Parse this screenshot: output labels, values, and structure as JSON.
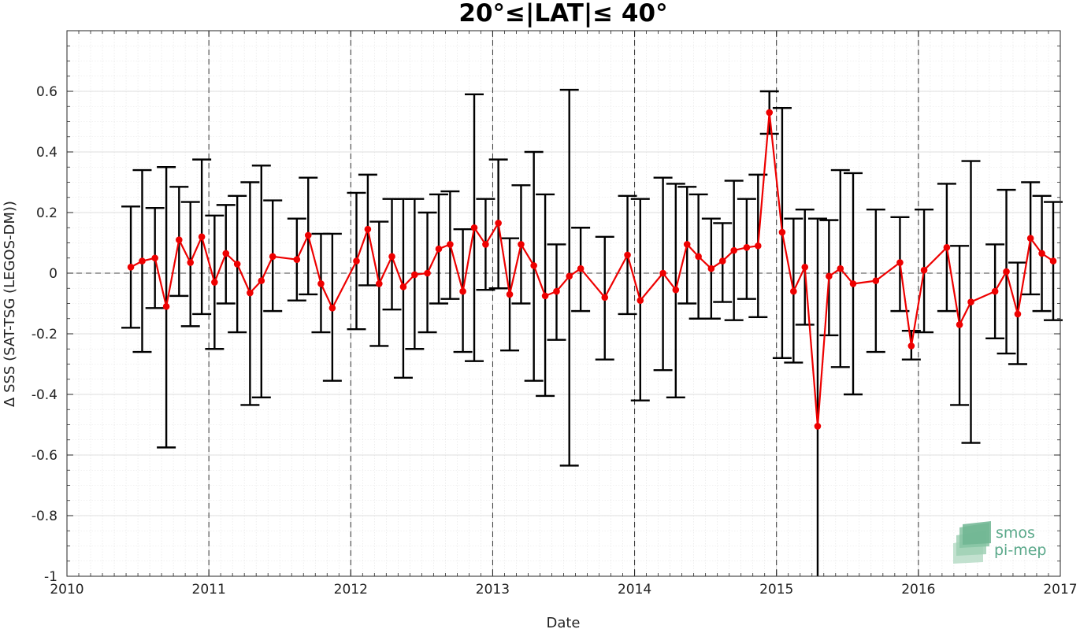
{
  "chart_data": {
    "type": "line",
    "title": "20°≤|LAT|≤ 40°",
    "xlabel": "Date",
    "ylabel": "Δ SSS (SAT-TSG (LEGOS-DM))",
    "xlim": [
      2010,
      2017
    ],
    "ylim": [
      -1,
      0.8
    ],
    "x_ticks": [
      "2010",
      "2011",
      "2012",
      "2013",
      "2014",
      "2015",
      "2016",
      "2017"
    ],
    "y_ticks": [
      "-1",
      "-0.8",
      "-0.6",
      "-0.4",
      "-0.2",
      "0",
      "0.2",
      "0.4",
      "0.6"
    ],
    "grid": true,
    "zero_line": true,
    "year_lines": [
      2011,
      2012,
      2013,
      2014,
      2015,
      2016
    ],
    "series": [
      {
        "color": "#ee0000",
        "errorbar_color": "#000000",
        "x": [
          2010.45,
          2010.53,
          2010.62,
          2010.7,
          2010.79,
          2010.87,
          2010.95,
          2011.04,
          2011.12,
          2011.2,
          2011.29,
          2011.37,
          2011.45,
          2011.62,
          2011.7,
          2011.79,
          2011.87,
          2012.04,
          2012.12,
          2012.2,
          2012.29,
          2012.37,
          2012.45,
          2012.54,
          2012.62,
          2012.7,
          2012.79,
          2012.87,
          2012.95,
          2013.04,
          2013.12,
          2013.2,
          2013.29,
          2013.37,
          2013.45,
          2013.54,
          2013.62,
          2013.79,
          2013.95,
          2014.04,
          2014.2,
          2014.29,
          2014.37,
          2014.45,
          2014.54,
          2014.62,
          2014.7,
          2014.79,
          2014.87,
          2014.95,
          2015.04,
          2015.12,
          2015.2,
          2015.29,
          2015.37,
          2015.45,
          2015.54,
          2015.7,
          2015.87,
          2015.95,
          2016.04,
          2016.2,
          2016.29,
          2016.37,
          2016.54,
          2016.62,
          2016.7,
          2016.79,
          2016.87,
          2016.95
        ],
        "y": [
          0.02,
          0.04,
          0.05,
          -0.11,
          0.11,
          0.035,
          0.12,
          -0.03,
          0.065,
          0.03,
          -0.065,
          -0.025,
          0.055,
          0.045,
          0.125,
          -0.035,
          -0.115,
          0.04,
          0.145,
          -0.035,
          0.055,
          -0.045,
          -0.005,
          0.0,
          0.08,
          0.095,
          -0.06,
          0.15,
          0.095,
          0.165,
          -0.07,
          0.095,
          0.025,
          -0.075,
          -0.06,
          -0.01,
          0.015,
          -0.08,
          0.06,
          -0.09,
          0.0,
          -0.055,
          0.095,
          0.055,
          0.015,
          0.04,
          0.075,
          0.085,
          0.09,
          0.53,
          0.135,
          -0.06,
          0.02,
          -0.505,
          -0.01,
          0.015,
          -0.035,
          -0.025,
          0.035,
          -0.24,
          0.01,
          0.085,
          -0.17,
          -0.095,
          -0.06,
          0.005,
          -0.135,
          0.115,
          0.065,
          0.04
        ],
        "err_high": [
          0.22,
          0.34,
          0.215,
          0.35,
          0.285,
          0.235,
          0.375,
          0.19,
          0.225,
          0.255,
          0.3,
          0.355,
          0.24,
          0.18,
          0.315,
          0.13,
          0.13,
          0.265,
          0.325,
          0.17,
          0.245,
          0.245,
          0.245,
          0.2,
          0.26,
          0.27,
          0.145,
          0.59,
          0.245,
          0.375,
          0.115,
          0.29,
          0.4,
          0.26,
          0.095,
          0.605,
          0.15,
          0.12,
          0.255,
          0.245,
          0.315,
          0.295,
          0.285,
          0.26,
          0.18,
          0.165,
          0.305,
          0.245,
          0.325,
          0.6,
          0.545,
          0.18,
          0.21,
          0.18,
          0.175,
          0.34,
          0.33,
          0.21,
          0.185,
          -0.19,
          0.21,
          0.295,
          0.09,
          0.37,
          0.095,
          0.275,
          0.035,
          0.3,
          0.255,
          0.235
        ],
        "err_low": [
          -0.18,
          -0.26,
          -0.115,
          -0.575,
          -0.075,
          -0.175,
          -0.135,
          -0.25,
          -0.1,
          -0.195,
          -0.435,
          -0.41,
          -0.125,
          -0.09,
          -0.07,
          -0.195,
          -0.355,
          -0.185,
          -0.04,
          -0.24,
          -0.12,
          -0.345,
          -0.25,
          -0.195,
          -0.1,
          -0.085,
          -0.26,
          -0.29,
          -0.055,
          -0.05,
          -0.255,
          -0.1,
          -0.355,
          -0.405,
          -0.22,
          -0.635,
          -0.125,
          -0.285,
          -0.135,
          -0.42,
          -0.32,
          -0.41,
          -0.1,
          -0.15,
          -0.15,
          -0.095,
          -0.155,
          -0.085,
          -0.145,
          0.46,
          -0.28,
          -0.295,
          -0.17,
          -1.0,
          -0.205,
          -0.31,
          -0.4,
          -0.26,
          -0.125,
          -0.285,
          -0.195,
          -0.125,
          -0.435,
          -0.56,
          -0.215,
          -0.265,
          -0.3,
          -0.07,
          -0.125,
          -0.155
        ]
      }
    ]
  },
  "logo": {
    "line1": "smos",
    "line2": "pi-mep"
  }
}
